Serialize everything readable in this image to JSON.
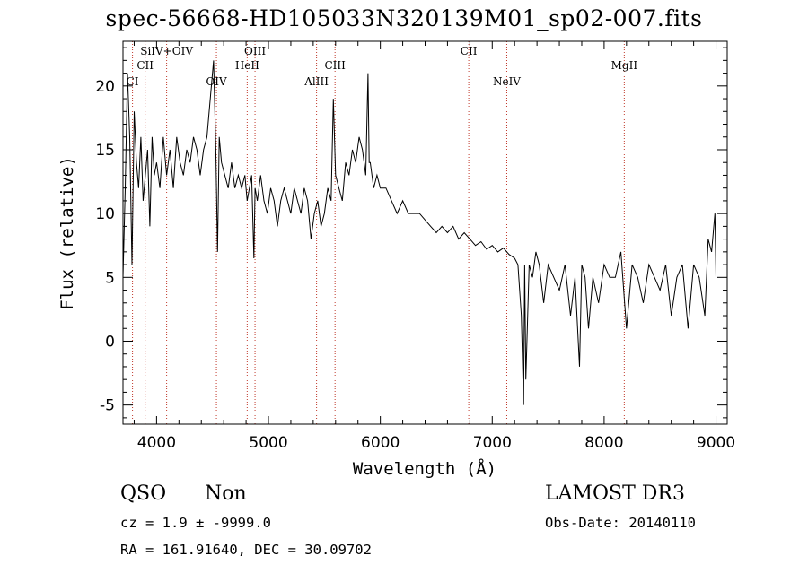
{
  "chart_data": {
    "type": "line",
    "title": "spec-56668-HD105033N320139M01_sp02-007.fits",
    "xlabel": "Wavelength (Å)",
    "ylabel": "Flux (relative)",
    "xlim": [
      3700,
      9100
    ],
    "ylim": [
      -6.5,
      23.5
    ],
    "xticks": [
      4000,
      5000,
      6000,
      7000,
      8000,
      9000
    ],
    "yticks": [
      -5,
      0,
      5,
      10,
      15,
      20
    ],
    "line_color": "#000000",
    "marker_color": "#c0392b",
    "series": [
      {
        "x": [
          3700,
          3720,
          3740,
          3760,
          3780,
          3800,
          3820,
          3840,
          3860,
          3880,
          3900,
          3920,
          3940,
          3960,
          3980,
          4000,
          4030,
          4060,
          4090,
          4120,
          4150,
          4180,
          4210,
          4240,
          4270,
          4300,
          4330,
          4360,
          4390,
          4420,
          4450,
          4480,
          4510,
          4530,
          4545,
          4560,
          4580,
          4610,
          4640,
          4670,
          4700,
          4730,
          4760,
          4790,
          4810,
          4830,
          4850,
          4870,
          4880,
          4900,
          4930,
          4960,
          4990,
          5020,
          5050,
          5080,
          5110,
          5140,
          5170,
          5200,
          5230,
          5260,
          5290,
          5320,
          5350,
          5380,
          5410,
          5440,
          5470,
          5500,
          5530,
          5560,
          5580,
          5600,
          5630,
          5660,
          5690,
          5720,
          5750,
          5780,
          5810,
          5840,
          5870,
          5890,
          5900,
          5910,
          5940,
          5970,
          6000,
          6050,
          6100,
          6150,
          6200,
          6250,
          6300,
          6350,
          6400,
          6450,
          6500,
          6550,
          6600,
          6650,
          6700,
          6750,
          6800,
          6850,
          6900,
          6950,
          7000,
          7050,
          7100,
          7150,
          7200,
          7230,
          7260,
          7280,
          7290,
          7300,
          7330,
          7360,
          7390,
          7420,
          7460,
          7500,
          7550,
          7600,
          7650,
          7700,
          7740,
          7780,
          7800,
          7830,
          7860,
          7900,
          7950,
          8000,
          8050,
          8100,
          8150,
          8200,
          8250,
          8300,
          8350,
          8400,
          8450,
          8500,
          8550,
          8600,
          8650,
          8700,
          8750,
          8800,
          8850,
          8900,
          8930,
          8960,
          8990,
          9000
        ],
        "y": [
          5,
          12,
          21,
          16,
          6,
          18,
          14,
          12,
          16,
          11,
          13,
          15,
          9,
          16,
          13,
          14,
          12,
          16,
          13,
          15,
          12,
          16,
          14,
          13,
          15,
          14,
          16,
          15,
          13,
          15,
          16,
          19,
          22,
          15,
          7,
          16,
          14,
          13,
          12,
          14,
          12,
          13,
          12,
          13,
          11,
          12,
          13,
          6.5,
          12,
          11,
          13,
          11,
          10,
          12,
          11,
          9,
          11,
          12,
          11,
          10,
          12,
          11,
          10,
          12,
          11,
          8,
          10,
          11,
          9,
          10,
          12,
          11,
          19,
          13,
          12,
          11,
          14,
          13,
          15,
          14,
          16,
          15,
          13,
          21,
          14,
          14,
          12,
          13,
          12,
          12,
          11,
          10,
          11,
          10,
          10,
          10,
          9.5,
          9,
          8.5,
          9,
          8.5,
          9,
          8,
          8.5,
          8,
          7.5,
          7.8,
          7.2,
          7.5,
          7,
          7.3,
          6.8,
          6.5,
          6,
          2,
          -5,
          6,
          -3,
          6,
          5,
          7,
          6,
          3,
          6,
          5,
          4,
          6,
          2,
          5,
          -2,
          6,
          5,
          1,
          5,
          3,
          6,
          5,
          5,
          7,
          1,
          6,
          5,
          3,
          6,
          5,
          4,
          6,
          2,
          5,
          6,
          1,
          6,
          5,
          2,
          8,
          7,
          10,
          5
        ]
      }
    ],
    "lines": [
      {
        "label": "CI",
        "x": 3785,
        "row": 3
      },
      {
        "label": "CII",
        "x": 3898,
        "row": 2
      },
      {
        "label": "SiIV+OIV",
        "x": 4090,
        "row": 1
      },
      {
        "label": "OIV",
        "x": 4535,
        "row": 3
      },
      {
        "label": "HeII",
        "x": 4810,
        "row": 2
      },
      {
        "label": "OIII",
        "x": 4880,
        "row": 1
      },
      {
        "label": "AlIII",
        "x": 5430,
        "row": 3
      },
      {
        "label": "CIII",
        "x": 5595,
        "row": 2
      },
      {
        "label": "CII",
        "x": 6790,
        "row": 1
      },
      {
        "label": "NeIV",
        "x": 7130,
        "row": 3
      },
      {
        "label": "MgII",
        "x": 8180,
        "row": 2
      }
    ]
  },
  "info": {
    "class": "QSO",
    "subclass": "Non",
    "cz": "cz = 1.9 ± -9999.0",
    "radec": "RA = 161.91640, DEC =  30.09702",
    "survey": "LAMOST DR3",
    "obs_date": "Obs-Date: 20140110"
  }
}
